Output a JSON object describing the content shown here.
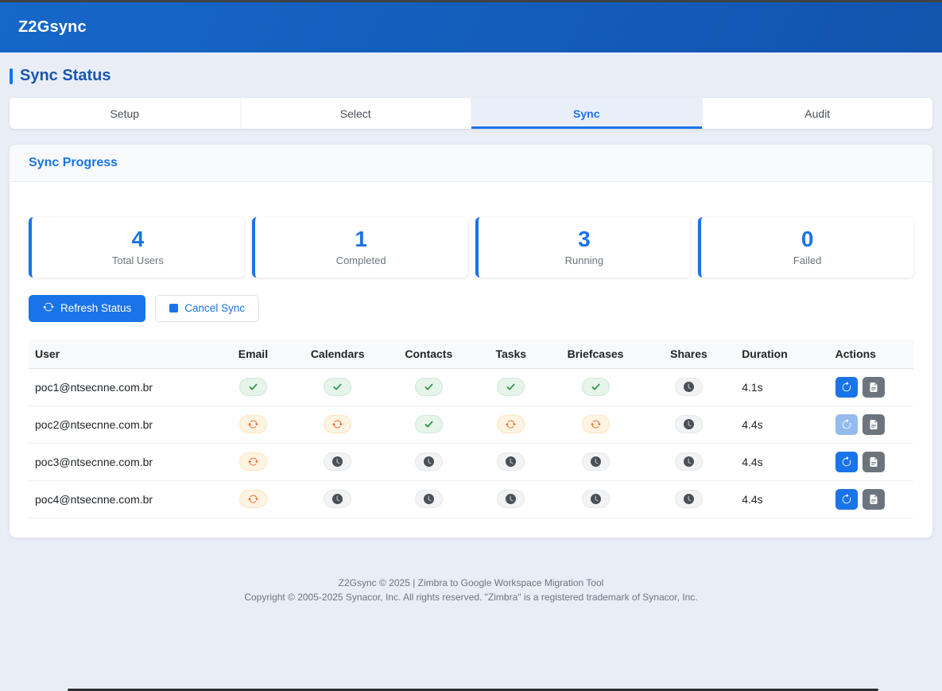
{
  "header": {
    "app_title": "Z2Gsync"
  },
  "page": {
    "title": "Sync Status"
  },
  "tabs": [
    {
      "label": "Setup",
      "active": false
    },
    {
      "label": "Select",
      "active": false
    },
    {
      "label": "Sync",
      "active": true
    },
    {
      "label": "Audit",
      "active": false
    }
  ],
  "panel": {
    "title": "Sync Progress"
  },
  "stats": [
    {
      "value": "4",
      "label": "Total Users"
    },
    {
      "value": "1",
      "label": "Completed"
    },
    {
      "value": "3",
      "label": "Running"
    },
    {
      "value": "0",
      "label": "Failed"
    }
  ],
  "toolbar": {
    "refresh_label": "Refresh Status",
    "cancel_label": "Cancel Sync"
  },
  "table": {
    "columns": [
      "User",
      "Email",
      "Calendars",
      "Contacts",
      "Tasks",
      "Briefcases",
      "Shares",
      "Duration",
      "Actions"
    ],
    "rows": [
      {
        "user": "poc1@ntsecnne.com.br",
        "email": "done",
        "calendars": "done",
        "contacts": "done",
        "tasks": "done",
        "briefcases": "done",
        "shares": "pending",
        "duration": "4.1s",
        "refresh_disabled": false
      },
      {
        "user": "poc2@ntsecnne.com.br",
        "email": "running",
        "calendars": "running",
        "contacts": "done",
        "tasks": "running",
        "briefcases": "running",
        "shares": "pending",
        "duration": "4.4s",
        "refresh_disabled": true
      },
      {
        "user": "poc3@ntsecnne.com.br",
        "email": "running",
        "calendars": "pending",
        "contacts": "pending",
        "tasks": "pending",
        "briefcases": "pending",
        "shares": "pending",
        "duration": "4.4s",
        "refresh_disabled": false
      },
      {
        "user": "poc4@ntsecnne.com.br",
        "email": "running",
        "calendars": "pending",
        "contacts": "pending",
        "tasks": "pending",
        "briefcases": "pending",
        "shares": "pending",
        "duration": "4.4s",
        "refresh_disabled": false
      }
    ]
  },
  "footer": {
    "line1": "Z2Gsync © 2025 | Zimbra to Google Workspace Migration Tool",
    "line2": "Copyright © 2005-2025 Synacor, Inc. All rights reserved. \"Zimbra\" is a registered trademark of Synacor, Inc."
  },
  "colors": {
    "accent_blue": "#1a73e8",
    "header_gradient_start": "#1667c9",
    "header_gradient_end": "#1254ae",
    "status_done_green": "#2b9348",
    "status_running_orange": "#e8590c",
    "status_pending_gray": "#495057"
  },
  "icon_names": {
    "done": "check-icon",
    "running": "sync-arrows-icon",
    "pending": "clock-icon",
    "row_refresh": "refresh-icon",
    "row_log": "log-file-icon",
    "toolbar_refresh": "refresh-arrows-icon",
    "toolbar_cancel": "stop-square-icon"
  }
}
